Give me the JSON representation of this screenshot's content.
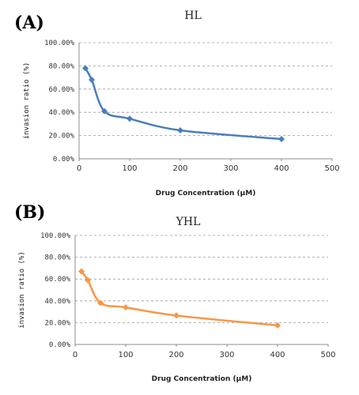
{
  "chart_data": [
    {
      "type": "line",
      "panel_label": "(A)",
      "title": "HL",
      "xlabel": "Drug Concentration (μM)",
      "ylabel": "invasion ratio (%)",
      "x_ticks": [
        "0",
        "100",
        "200",
        "300",
        "400",
        "500"
      ],
      "y_ticks": [
        "0.00%",
        "20.00%",
        "40.00%",
        "60.00%",
        "80.00%",
        "100.00%"
      ],
      "xlim": [
        0,
        500
      ],
      "ylim": [
        0,
        100
      ],
      "grid": true,
      "color": "#4a7ebb",
      "marker": "diamond",
      "series": [
        {
          "x": [
            12.5,
            25,
            50,
            100,
            200,
            400
          ],
          "y": [
            78,
            68,
            41,
            34.5,
            24.5,
            17
          ]
        }
      ]
    },
    {
      "type": "line",
      "panel_label": "(B)",
      "title": "YHL",
      "xlabel": "Drug Concentration (μM)",
      "ylabel": "invasion ratio (%)",
      "x_ticks": [
        "0",
        "100",
        "200",
        "300",
        "400",
        "500"
      ],
      "y_ticks": [
        "0.00%",
        "20.00%",
        "40.00%",
        "60.00%",
        "80.00%",
        "100.00%"
      ],
      "xlim": [
        0,
        500
      ],
      "ylim": [
        0,
        100
      ],
      "grid": true,
      "color": "#f79646",
      "marker": "diamond",
      "series": [
        {
          "x": [
            12.5,
            25,
            50,
            100,
            200,
            400
          ],
          "y": [
            67,
            59,
            38,
            34,
            26.5,
            17.5
          ]
        }
      ]
    }
  ]
}
